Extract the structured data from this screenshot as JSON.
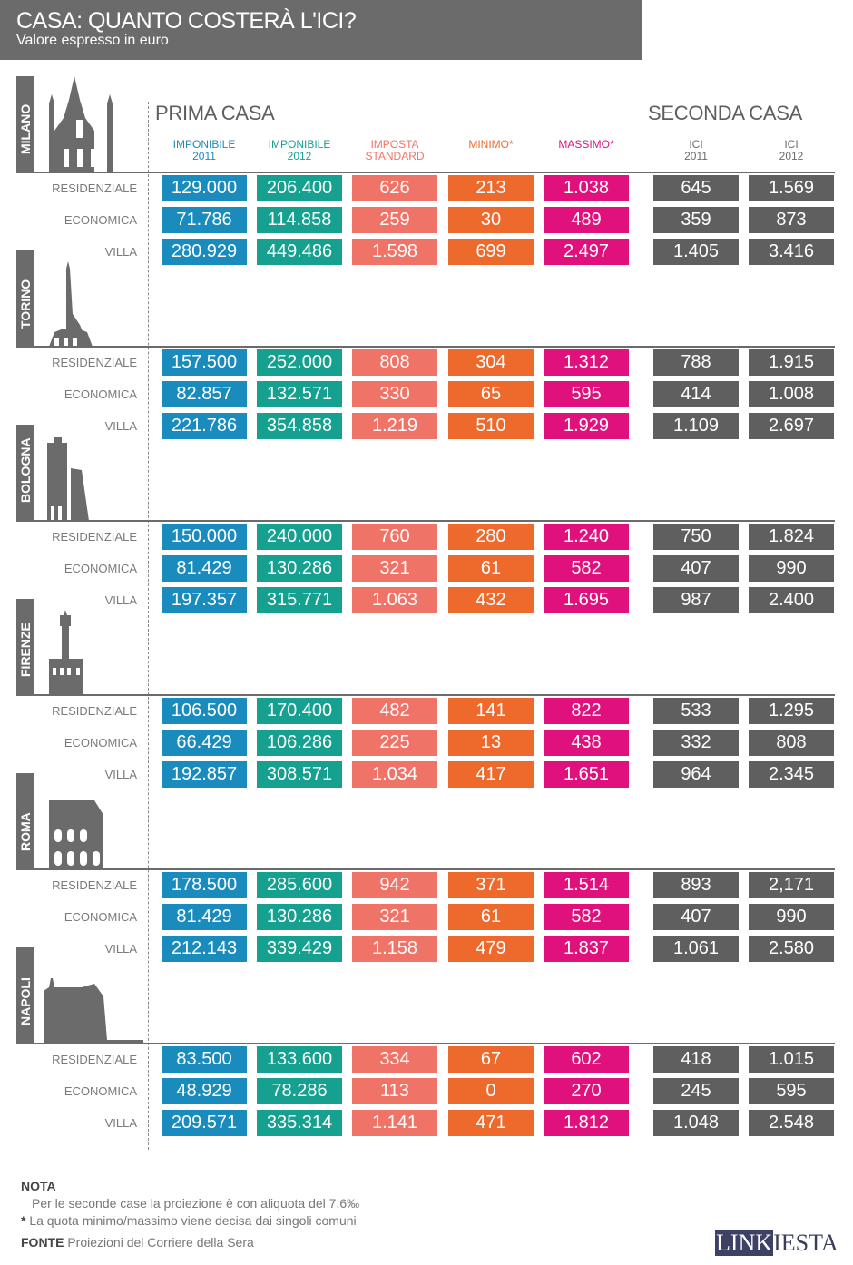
{
  "header": {
    "title": "CASA: QUANTO COSTERÀ L'ICI?",
    "subtitle": "Valore espresso in euro"
  },
  "sections": {
    "prima": "PRIMA CASA",
    "seconda": "SECONDA CASA"
  },
  "colors": {
    "imponibile_2011": "#1a8bbd",
    "imponibile_2012": "#16a08f",
    "imposta_standard": "#ef7467",
    "minimo": "#ee6a2c",
    "massimo": "#e0117d",
    "ici_2011": "#5f5f60",
    "ici_2012": "#5f5f60"
  },
  "chart_data": {
    "type": "table",
    "columns": [
      "IMPONIBILE 2011",
      "IMPONIBILE 2012",
      "IMPOSTA STANDARD",
      "MINIMO*",
      "MASSIMO*",
      "ICI 2011",
      "ICI 2012"
    ],
    "column_lines": [
      [
        "IMPONIBILE",
        "2011"
      ],
      [
        "IMPONIBILE",
        "2012"
      ],
      [
        "IMPOSTA",
        "STANDARD"
      ],
      [
        "MINIMO*",
        ""
      ],
      [
        "MASSIMO*",
        ""
      ],
      [
        "ICI",
        "2011"
      ],
      [
        "ICI",
        "2012"
      ]
    ],
    "row_types": [
      "RESIDENZIALE",
      "ECONOMICA",
      "VILLA"
    ],
    "cities": [
      {
        "name": "MILANO",
        "icon": "duomo-icon",
        "rows": [
          [
            "129.000",
            "206.400",
            "626",
            "213",
            "1.038",
            "645",
            "1.569"
          ],
          [
            "71.786",
            "114.858",
            "259",
            "30",
            "489",
            "359",
            "873"
          ],
          [
            "280.929",
            "449.486",
            "1.598",
            "699",
            "2.497",
            "1.405",
            "3.416"
          ]
        ]
      },
      {
        "name": "TORINO",
        "icon": "mole-antonelliana-icon",
        "rows": [
          [
            "157.500",
            "252.000",
            "808",
            "304",
            "1.312",
            "788",
            "1.915"
          ],
          [
            "82.857",
            "132.571",
            "330",
            "65",
            "595",
            "414",
            "1.008"
          ],
          [
            "221.786",
            "354.858",
            "1.219",
            "510",
            "1.929",
            "1.109",
            "2.697"
          ]
        ]
      },
      {
        "name": "BOLOGNA",
        "icon": "two-towers-icon",
        "rows": [
          [
            "150.000",
            "240.000",
            "760",
            "280",
            "1.240",
            "750",
            "1.824"
          ],
          [
            "81.429",
            "130.286",
            "321",
            "61",
            "582",
            "407",
            "990"
          ],
          [
            "197.357",
            "315.771",
            "1.063",
            "432",
            "1.695",
            "987",
            "2.400"
          ]
        ]
      },
      {
        "name": "FIRENZE",
        "icon": "palazzo-vecchio-icon",
        "rows": [
          [
            "106.500",
            "170.400",
            "482",
            "141",
            "822",
            "533",
            "1.295"
          ],
          [
            "66.429",
            "106.286",
            "225",
            "13",
            "438",
            "332",
            "808"
          ],
          [
            "192.857",
            "308.571",
            "1.034",
            "417",
            "1.651",
            "964",
            "2.345"
          ]
        ]
      },
      {
        "name": "ROMA",
        "icon": "colosseum-icon",
        "rows": [
          [
            "178.500",
            "285.600",
            "942",
            "371",
            "1.514",
            "893",
            "2,171"
          ],
          [
            "81.429",
            "130.286",
            "321",
            "61",
            "582",
            "407",
            "990"
          ],
          [
            "212.143",
            "339.429",
            "1.158",
            "479",
            "1.837",
            "1.061",
            "2.580"
          ]
        ]
      },
      {
        "name": "NAPOLI",
        "icon": "castel-nuovo-icon",
        "rows": [
          [
            "83.500",
            "133.600",
            "334",
            "67",
            "602",
            "418",
            "1.015"
          ],
          [
            "48.929",
            "78.286",
            "113",
            "0",
            "270",
            "245",
            "595"
          ],
          [
            "209.571",
            "335.314",
            "1.141",
            "471",
            "1.812",
            "1.048",
            "2.548"
          ]
        ]
      }
    ]
  },
  "footer": {
    "nota_label": "NOTA",
    "nota_text": "Per le seconde case la proiezione è con aliquota del 7,6‰",
    "asterisk": "*",
    "asterisk_text": " La quota minimo/massimo viene decisa dai singoli comuni",
    "fonte_label": "FONTE",
    "fonte_text": " Proiezioni del Corriere della Sera",
    "logo_a": "LINK",
    "logo_b": "IESTA"
  }
}
